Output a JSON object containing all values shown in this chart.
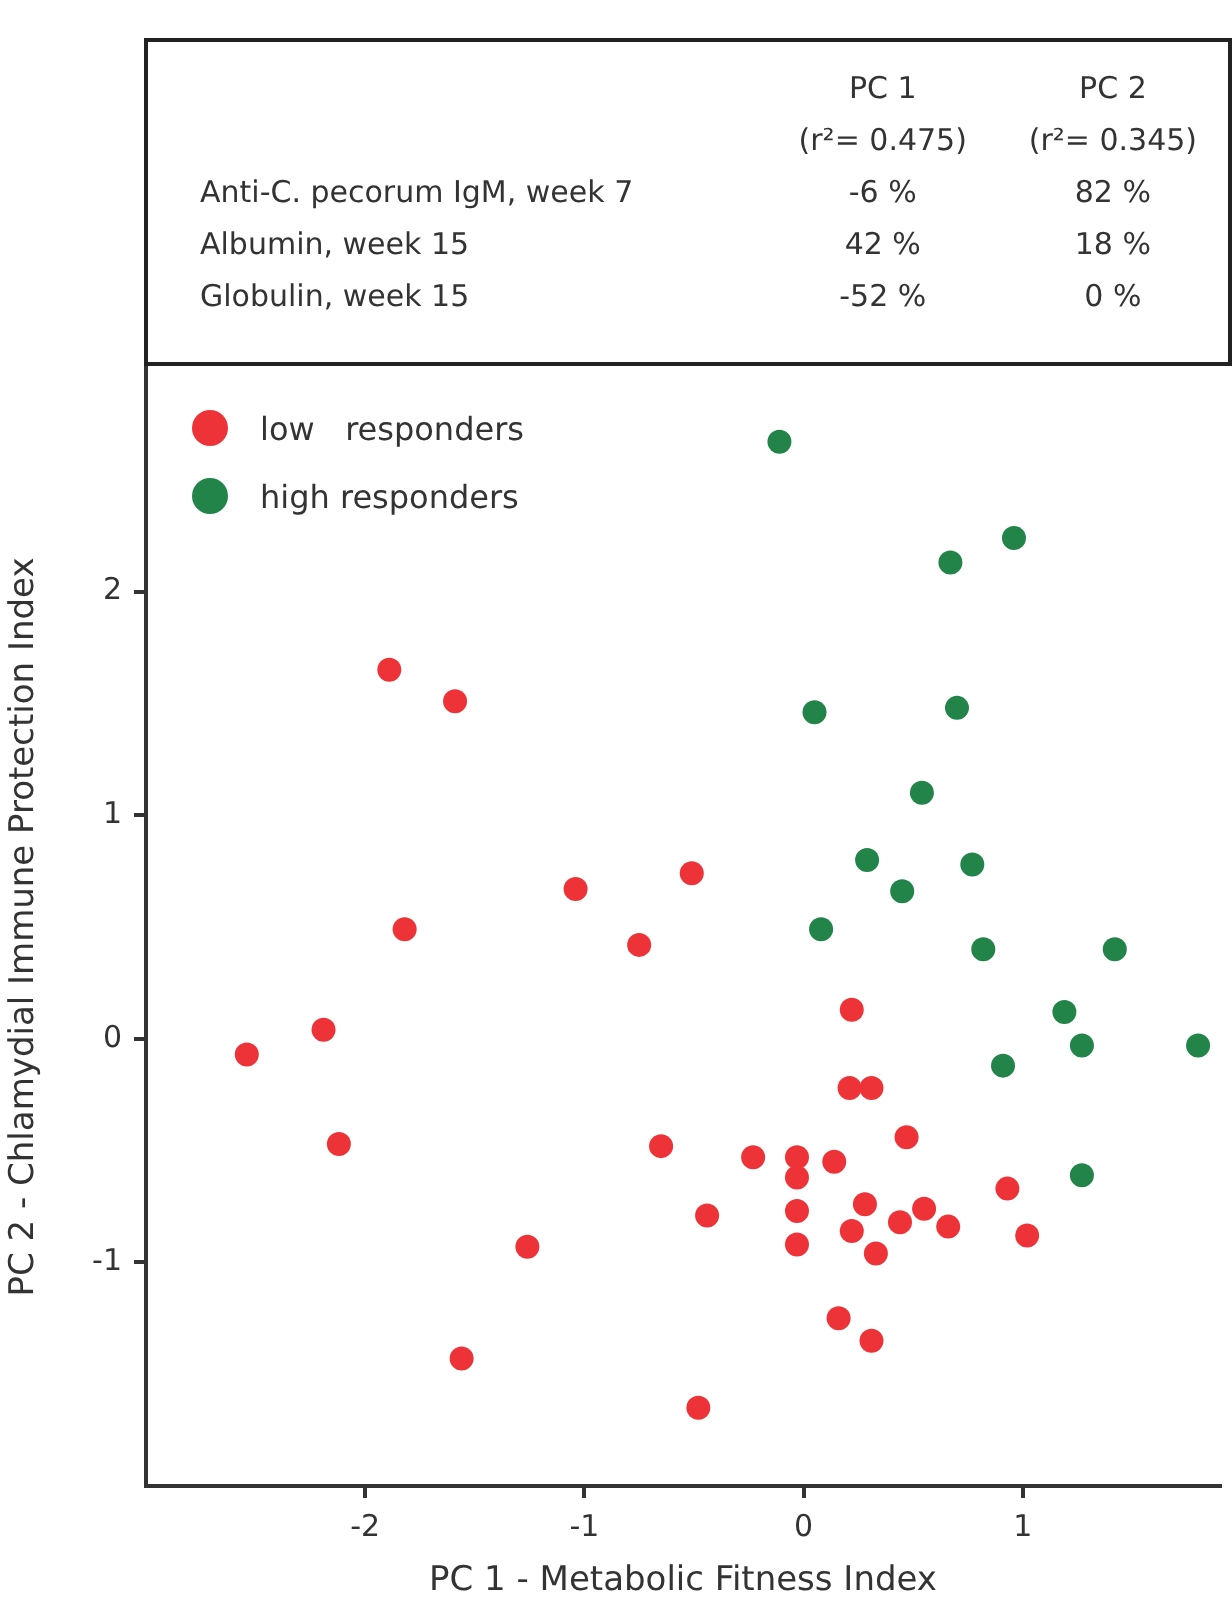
{
  "chart_data": {
    "type": "scatter",
    "xlabel": "PC 1 - Metabolic Fitness Index",
    "ylabel": "PC 2 - Chlamydial Immune Protection Index",
    "annotations": [
      "PC 1",
      "PC 2",
      "(r²= 0.475)",
      "(r²= 0.345)",
      "Anti-C. pecorum IgM, week 7",
      "-6 %",
      "82 %",
      "Albumin, week 15",
      "42 %",
      "18 %",
      "Globulin, week 15",
      "-52 %",
      "0 %"
    ],
    "xlim": [
      -3,
      1.9
    ],
    "xticks": [
      -2,
      -1,
      0,
      1
    ],
    "ylim": [
      -2,
      3
    ],
    "yticks": [
      -1,
      0,
      1,
      2
    ],
    "grid": false,
    "legend": "top left",
    "marker": "circle",
    "series": [
      {
        "name": "low   responders",
        "color": "#ee3338",
        "x": [
          -2.54,
          -2.19,
          -2.12,
          -1.89,
          -1.59,
          -1.82,
          -1.56,
          -1.26,
          -1.04,
          -0.75,
          -0.51,
          -0.65,
          -0.44,
          -0.48,
          -0.23,
          -0.03,
          -0.03,
          -0.03,
          -0.03,
          0.14,
          0.22,
          0.21,
          0.31,
          0.47,
          0.28,
          0.22,
          0.33,
          0.44,
          0.55,
          0.66,
          0.16,
          0.31,
          0.93,
          1.02
        ],
        "values": [
          -0.07,
          0.04,
          -0.47,
          1.65,
          1.51,
          0.49,
          -1.43,
          -0.93,
          0.67,
          0.42,
          0.74,
          -0.48,
          -0.79,
          -1.65,
          -0.53,
          -0.53,
          -0.62,
          -0.77,
          -0.92,
          -0.55,
          0.13,
          -0.22,
          -0.22,
          -0.44,
          -0.74,
          -0.86,
          -0.96,
          -0.82,
          -0.76,
          -0.84,
          -1.25,
          -1.35,
          -0.67,
          -0.88
        ]
      },
      {
        "name": "high responders",
        "color": "#23844a",
        "x": [
          -0.11,
          0.96,
          0.67,
          0.05,
          0.7,
          0.54,
          0.29,
          0.77,
          0.45,
          0.08,
          0.82,
          1.42,
          1.19,
          1.27,
          1.8,
          0.91,
          1.27
        ],
        "values": [
          2.67,
          2.24,
          2.13,
          1.46,
          1.48,
          1.1,
          0.8,
          0.78,
          0.66,
          0.49,
          0.4,
          0.4,
          0.12,
          -0.03,
          -0.03,
          -0.12,
          -0.61
        ]
      }
    ]
  }
}
